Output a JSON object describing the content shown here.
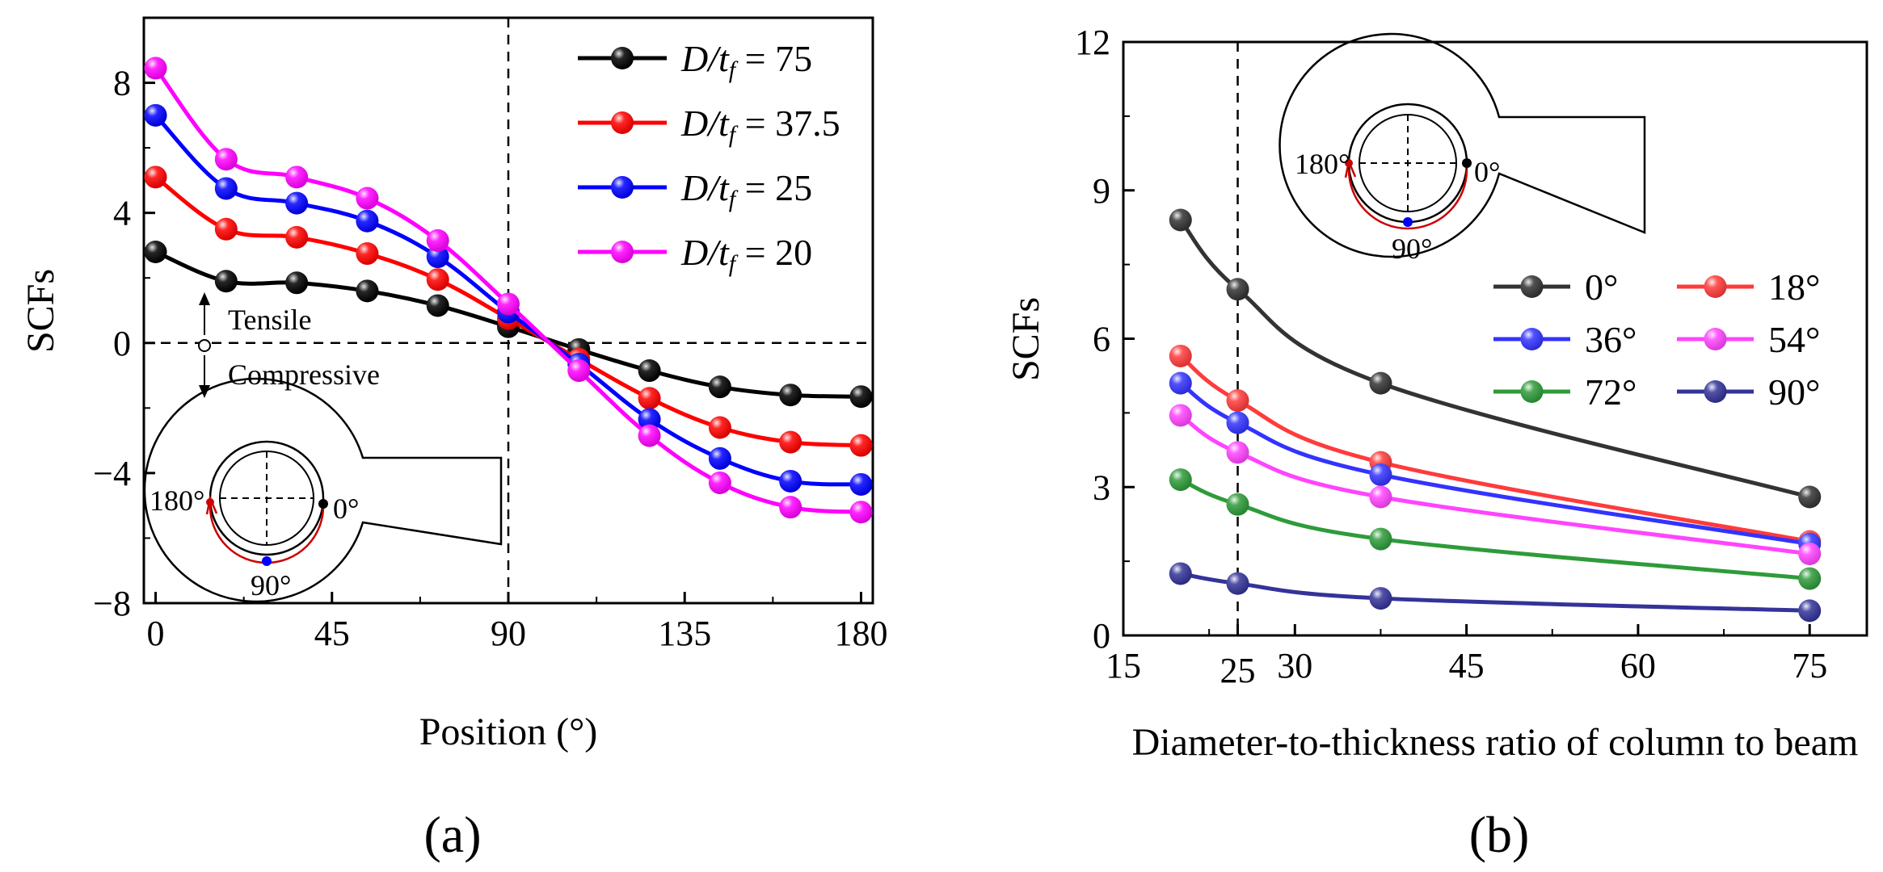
{
  "chart_data": [
    {
      "type": "line",
      "panel_label": "(a)",
      "title": "",
      "xlabel": "Position (°)",
      "ylabel": "SCFs",
      "xlim": [
        -3,
        183
      ],
      "ylim": [
        -8,
        10
      ],
      "xticks": [
        0,
        45,
        90,
        135,
        180
      ],
      "xtick_labels": [
        "0",
        "45",
        "90",
        "135",
        "180"
      ],
      "yticks": [
        -8,
        -4,
        0,
        4,
        8
      ],
      "ytick_labels": [
        "−8",
        "−4",
        "0",
        "4",
        "8"
      ],
      "x": [
        0,
        18,
        36,
        54,
        72,
        90,
        108,
        126,
        144,
        162,
        180
      ],
      "series": [
        {
          "name": "D/tf = 75",
          "legend_main": "D/t",
          "legend_sub": "f",
          "legend_value": " = 75",
          "color": "#000000",
          "values": [
            2.8,
            1.9,
            1.85,
            1.6,
            1.15,
            0.5,
            -0.2,
            -0.85,
            -1.35,
            -1.6,
            -1.65
          ]
        },
        {
          "name": "D/tf = 37.5",
          "legend_main": "D/t",
          "legend_sub": "f",
          "legend_value": " = 37.5",
          "color": "#ff0000",
          "values": [
            5.1,
            3.5,
            3.25,
            2.75,
            1.95,
            0.75,
            -0.5,
            -1.7,
            -2.6,
            -3.05,
            -3.15
          ]
        },
        {
          "name": "D/tf = 25",
          "legend_main": "D/t",
          "legend_sub": "f",
          "legend_value": " = 25",
          "color": "#0000ff",
          "values": [
            7.0,
            4.75,
            4.3,
            3.75,
            2.65,
            0.95,
            -0.65,
            -2.35,
            -3.55,
            -4.25,
            -4.35
          ]
        },
        {
          "name": "D/tf = 20",
          "legend_main": "D/t",
          "legend_sub": "f",
          "legend_value": " = 20",
          "color": "#ff00ff",
          "values": [
            8.45,
            5.65,
            5.1,
            4.45,
            3.15,
            1.2,
            -0.85,
            -2.85,
            -4.3,
            -5.05,
            -5.2
          ]
        }
      ],
      "vline_x": 90,
      "hline_y": 0,
      "annotations": {
        "tensile": "Tensile",
        "compressive": "Compressive"
      },
      "inset": {
        "angle_180": "180°",
        "angle_0": "0°",
        "angle_90": "90°"
      }
    },
    {
      "type": "line",
      "panel_label": "(b)",
      "title": "",
      "xlabel": "Diameter-to-thickness ratio of column to beam",
      "ylabel": "SCFs",
      "xlim": [
        15,
        80
      ],
      "ylim": [
        0,
        12
      ],
      "xticks": [
        15,
        30,
        45,
        60,
        75
      ],
      "xtick_labels": [
        "15",
        "30",
        "45",
        "60",
        "75"
      ],
      "highlight_tick": {
        "value": 25,
        "label": "25",
        "color": "#ff0000"
      },
      "yticks": [
        0,
        3,
        6,
        9,
        12
      ],
      "ytick_labels": [
        "0",
        "3",
        "6",
        "9",
        "12"
      ],
      "x": [
        20,
        25,
        37.5,
        75
      ],
      "series": [
        {
          "name": "0°",
          "color": "#333333",
          "values": [
            8.4,
            7.0,
            5.1,
            2.8
          ]
        },
        {
          "name": "18°",
          "color": "#ff3b3b",
          "values": [
            5.65,
            4.75,
            3.5,
            1.9
          ]
        },
        {
          "name": "36°",
          "color": "#3333ff",
          "values": [
            5.1,
            4.3,
            3.25,
            1.85
          ]
        },
        {
          "name": "54°",
          "color": "#ff44ff",
          "values": [
            4.45,
            3.7,
            2.8,
            1.65
          ]
        },
        {
          "name": "72°",
          "color": "#2e9b3a",
          "values": [
            3.15,
            2.65,
            1.95,
            1.15
          ]
        },
        {
          "name": "90°",
          "color": "#333399",
          "values": [
            1.25,
            1.05,
            0.75,
            0.5
          ]
        }
      ],
      "vline_x": 25,
      "inset": {
        "angle_180": "180°",
        "angle_0": "0°",
        "angle_90": "90°"
      }
    }
  ]
}
